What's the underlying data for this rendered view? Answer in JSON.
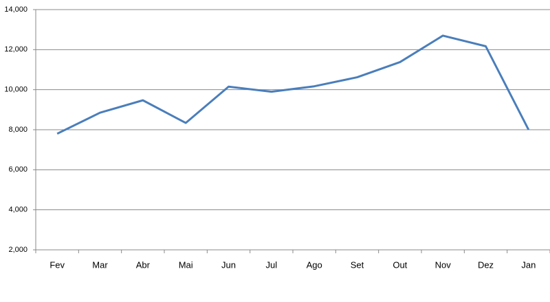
{
  "chart_data": {
    "type": "line",
    "categories": [
      "Fev",
      "Mar",
      "Abr",
      "Mai",
      "Jun",
      "Jul",
      "Ago",
      "Set",
      "Out",
      "Nov",
      "Dez",
      "Jan"
    ],
    "values": [
      7800,
      8850,
      9470,
      8340,
      10150,
      9900,
      10170,
      10620,
      11380,
      12700,
      12170,
      8000
    ],
    "color": "#4a7ebb",
    "ylim": [
      2000,
      14000
    ],
    "yticks": [
      {
        "value": 2000,
        "label": "2,000"
      },
      {
        "value": 4000,
        "label": "4,000"
      },
      {
        "value": 6000,
        "label": "6,000"
      },
      {
        "value": 8000,
        "label": "8,000"
      },
      {
        "value": 10000,
        "label": "10,000"
      },
      {
        "value": 12000,
        "label": "12,000"
      },
      {
        "value": 14000,
        "label": "14,000"
      }
    ],
    "grid": true
  }
}
